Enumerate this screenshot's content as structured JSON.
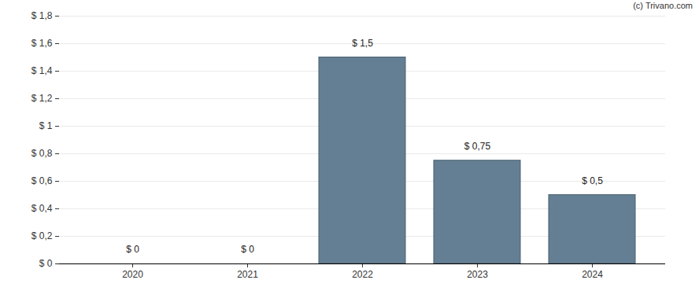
{
  "chart_data": {
    "type": "bar",
    "categories": [
      "2020",
      "2021",
      "2022",
      "2023",
      "2024"
    ],
    "values": [
      0,
      0,
      1.5,
      0.75,
      0.5
    ],
    "value_labels": [
      "$ 0",
      "$ 0",
      "$ 1,5",
      "$ 0,75",
      "$ 0,5"
    ],
    "data_labels": true,
    "color": "#647f93",
    "ylim": [
      0,
      1.8
    ],
    "yticks": [
      {
        "value": 0,
        "label": "$ 0"
      },
      {
        "value": 0.2,
        "label": "$ 0,2"
      },
      {
        "value": 0.4,
        "label": "$ 0,4"
      },
      {
        "value": 0.6,
        "label": "$ 0,6"
      },
      {
        "value": 0.8,
        "label": "$ 0,8"
      },
      {
        "value": 1,
        "label": "$ 1"
      },
      {
        "value": 1.2,
        "label": "$ 1,2"
      },
      {
        "value": 1.4,
        "label": "$ 1,4"
      },
      {
        "value": 1.6,
        "label": "$ 1,6"
      },
      {
        "value": 1.8,
        "label": "$ 1,8"
      }
    ],
    "grid": true,
    "annotations": [
      "(c) Trivano.com"
    ]
  }
}
